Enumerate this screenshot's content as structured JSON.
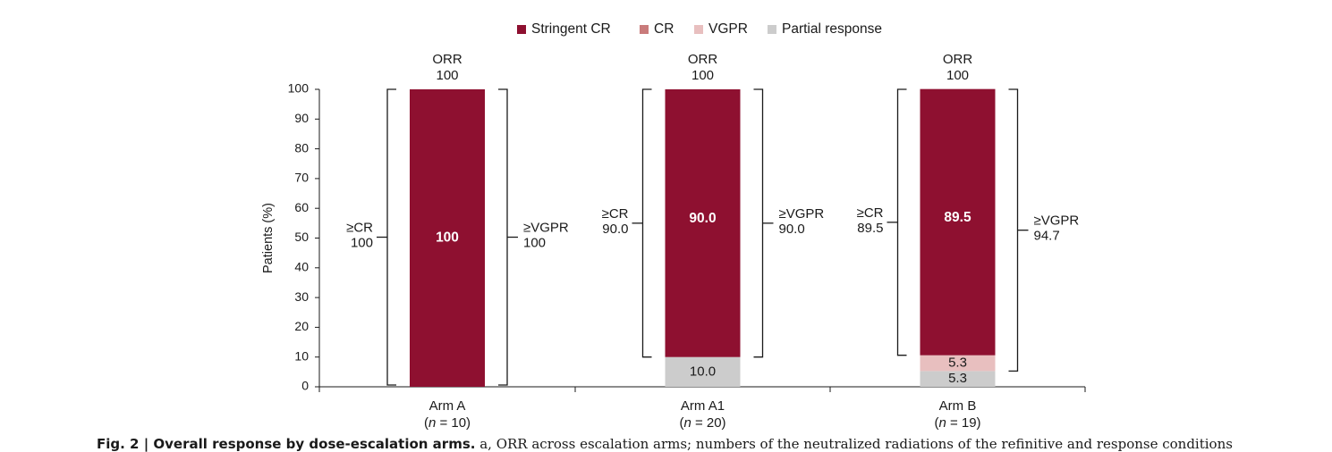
{
  "chart_data": {
    "type": "bar",
    "stacked": true,
    "ylabel": "Patients (%)",
    "ylim": [
      0,
      100
    ],
    "yticks": [
      "0",
      "10",
      "20",
      "30",
      "40",
      "50",
      "60",
      "70",
      "80",
      "90",
      "100"
    ],
    "legend_position": "top-center",
    "legend": [
      {
        "name": "Stringent CR",
        "color": "#8E1030"
      },
      {
        "name": "CR",
        "color": "#C97B7B"
      },
      {
        "name": "VGPR",
        "color": "#E8BFBF"
      },
      {
        "name": "Partial response",
        "color": "#CCCCCC"
      }
    ],
    "categories": [
      {
        "label": "Arm A",
        "n_prefix": "(",
        "n_italic": "n",
        "n_suffix": " = 10)"
      },
      {
        "label": "Arm A1",
        "n_prefix": "(",
        "n_italic": "n",
        "n_suffix": " = 20)"
      },
      {
        "label": "Arm B",
        "n_prefix": "(",
        "n_italic": "n",
        "n_suffix": " = 19)"
      }
    ],
    "series": [
      {
        "name": "Partial response",
        "color": "#CCCCCC",
        "values": [
          0,
          10.0,
          5.3
        ],
        "labels": [
          "",
          "10.0",
          "5.3"
        ]
      },
      {
        "name": "VGPR",
        "color": "#E8BFBF",
        "values": [
          0,
          0,
          5.3
        ],
        "labels": [
          "",
          "",
          "5.3"
        ]
      },
      {
        "name": "CR",
        "color": "#C97B7B",
        "values": [
          0,
          0,
          0
        ],
        "labels": [
          "",
          "",
          ""
        ]
      },
      {
        "name": "Stringent CR",
        "color": "#8E1030",
        "values": [
          100,
          90.0,
          89.5
        ],
        "labels": [
          "100",
          "90.0",
          "89.5"
        ]
      }
    ],
    "orr": [
      {
        "title": "ORR",
        "value": "100"
      },
      {
        "title": "ORR",
        "value": "100"
      },
      {
        "title": "ORR",
        "value": "100"
      }
    ],
    "cr_brackets": [
      {
        "title": "≥CR",
        "value": "100",
        "range": [
          0,
          100
        ]
      },
      {
        "title": "≥CR",
        "value": "90.0",
        "range": [
          10,
          100
        ]
      },
      {
        "title": "≥CR",
        "value": "89.5",
        "range": [
          10.6,
          100
        ]
      }
    ],
    "vgpr_brackets": [
      {
        "title": "≥VGPR",
        "value": "100",
        "range": [
          0,
          100
        ]
      },
      {
        "title": "≥VGPR",
        "value": "90.0",
        "range": [
          10,
          100
        ]
      },
      {
        "title": "≥VGPR",
        "value": "94.7",
        "range": [
          5.3,
          100
        ]
      }
    ]
  },
  "caption": {
    "label": "Fig. 2 | Overall response by dose-escalation arms.",
    "text": " a, ORR across escalation arms; numbers of the neutralized radiations of the refinitive and response conditions"
  }
}
